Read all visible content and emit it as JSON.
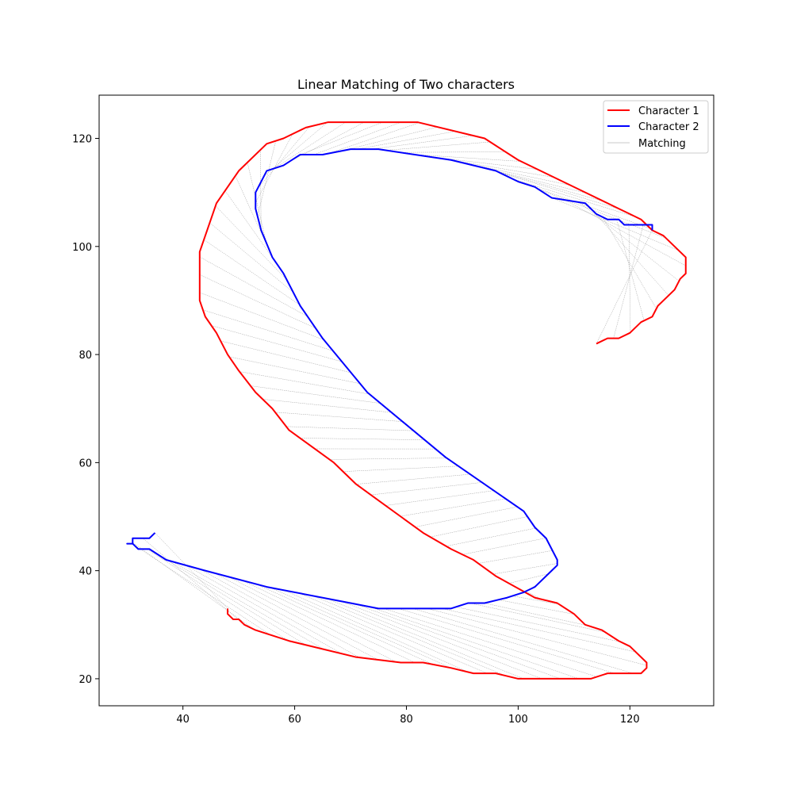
{
  "chart_data": {
    "type": "line",
    "title": "Linear Matching of Two characters",
    "xlabel": "",
    "ylabel": "",
    "xlim": [
      25,
      135
    ],
    "ylim": [
      15,
      128
    ],
    "xticks": [
      40,
      60,
      80,
      100,
      120
    ],
    "yticks": [
      20,
      40,
      60,
      80,
      100,
      120
    ],
    "grid": false,
    "legend_position": "top-right",
    "colors": {
      "series1": "#ff0000",
      "series2": "#0000ff",
      "matching": "#808080"
    },
    "legend": [
      {
        "label": "Character 1",
        "color": "#ff0000",
        "kind": "series"
      },
      {
        "label": "Character 2",
        "color": "#0000ff",
        "kind": "series"
      },
      {
        "label": "Matching",
        "color": "#c8c8c8",
        "kind": "matching"
      }
    ],
    "series": [
      {
        "name": "Character 1",
        "color": "#ff0000",
        "points": [
          [
            114,
            82
          ],
          [
            116,
            83
          ],
          [
            118,
            83
          ],
          [
            120,
            84
          ],
          [
            122,
            86
          ],
          [
            124,
            87
          ],
          [
            125,
            89
          ],
          [
            128,
            92
          ],
          [
            129,
            94
          ],
          [
            130,
            95
          ],
          [
            130,
            98
          ],
          [
            128,
            100
          ],
          [
            126,
            102
          ],
          [
            124,
            103
          ],
          [
            122,
            105
          ],
          [
            120,
            106
          ],
          [
            118,
            107
          ],
          [
            116,
            108
          ],
          [
            112,
            110
          ],
          [
            108,
            112
          ],
          [
            104,
            114
          ],
          [
            100,
            116
          ],
          [
            94,
            120
          ],
          [
            82,
            123
          ],
          [
            66,
            123
          ],
          [
            62,
            122
          ],
          [
            58,
            120
          ],
          [
            55,
            119
          ],
          [
            50,
            114
          ],
          [
            46,
            108
          ],
          [
            43,
            99
          ],
          [
            43,
            90
          ],
          [
            44,
            87
          ],
          [
            46,
            84
          ],
          [
            48,
            80
          ],
          [
            50,
            77
          ],
          [
            53,
            73
          ],
          [
            56,
            70
          ],
          [
            59,
            66
          ],
          [
            67,
            60
          ],
          [
            71,
            56
          ],
          [
            75,
            53
          ],
          [
            83,
            47
          ],
          [
            88,
            44
          ],
          [
            92,
            42
          ],
          [
            96,
            39
          ],
          [
            103,
            35
          ],
          [
            107,
            34
          ],
          [
            110,
            32
          ],
          [
            112,
            30
          ],
          [
            115,
            29
          ],
          [
            118,
            27
          ],
          [
            120,
            26
          ],
          [
            123,
            23
          ],
          [
            123,
            22
          ],
          [
            122,
            21
          ],
          [
            116,
            21
          ],
          [
            113,
            20
          ],
          [
            100,
            20
          ],
          [
            96,
            21
          ],
          [
            92,
            21
          ],
          [
            88,
            22
          ],
          [
            83,
            23
          ],
          [
            79,
            23
          ],
          [
            71,
            24
          ],
          [
            59,
            27
          ],
          [
            53,
            29
          ],
          [
            51,
            30
          ],
          [
            50,
            31
          ],
          [
            49,
            31
          ],
          [
            48,
            32
          ],
          [
            48,
            33
          ]
        ]
      },
      {
        "name": "Character 2",
        "color": "#0000ff",
        "points": [
          [
            124,
            103
          ],
          [
            124,
            104
          ],
          [
            119,
            104
          ],
          [
            118,
            105
          ],
          [
            116,
            105
          ],
          [
            114,
            106
          ],
          [
            112,
            108
          ],
          [
            106,
            109
          ],
          [
            103,
            111
          ],
          [
            100,
            112
          ],
          [
            96,
            114
          ],
          [
            88,
            116
          ],
          [
            75,
            118
          ],
          [
            70,
            118
          ],
          [
            65,
            117
          ],
          [
            61,
            117
          ],
          [
            58,
            115
          ],
          [
            55,
            114
          ],
          [
            53,
            110
          ],
          [
            53,
            107
          ],
          [
            54,
            103
          ],
          [
            56,
            98
          ],
          [
            58,
            95
          ],
          [
            61,
            89
          ],
          [
            65,
            83
          ],
          [
            73,
            73
          ],
          [
            87,
            61
          ],
          [
            101,
            51
          ],
          [
            103,
            48
          ],
          [
            105,
            46
          ],
          [
            106,
            44
          ],
          [
            107,
            42
          ],
          [
            107,
            41
          ],
          [
            106,
            40
          ],
          [
            103,
            37
          ],
          [
            101,
            36
          ],
          [
            98,
            35
          ],
          [
            94,
            34
          ],
          [
            91,
            34
          ],
          [
            88,
            33
          ],
          [
            75,
            33
          ],
          [
            70,
            34
          ],
          [
            55,
            37
          ],
          [
            44,
            40
          ],
          [
            37,
            42
          ],
          [
            34,
            44
          ],
          [
            32,
            44
          ],
          [
            31,
            45
          ],
          [
            30,
            45
          ],
          [
            31,
            45
          ],
          [
            31,
            46
          ],
          [
            34,
            46
          ],
          [
            35,
            47
          ]
        ]
      }
    ]
  }
}
